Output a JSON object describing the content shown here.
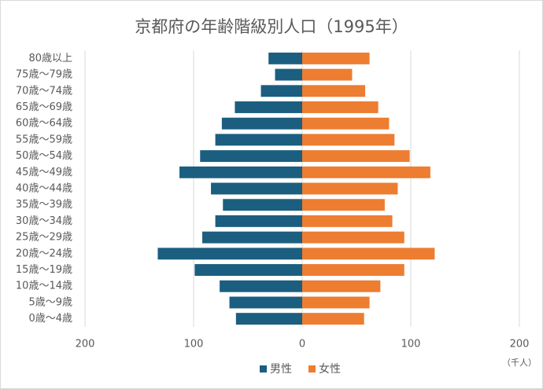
{
  "chart_data": {
    "type": "bar",
    "orientation": "horizontal",
    "title": "京都府の年齢階級別人口（1995年）",
    "unit_label": "（千人）",
    "categories": [
      "80歳以上",
      "75歳～79歳",
      "70歳～74歳",
      "65歳～69歳",
      "60歳～64歳",
      "55歳～59歳",
      "50歳～54歳",
      "45歳～49歳",
      "40歳～44歳",
      "35歳～39歳",
      "30歳～34歳",
      "25歳～29歳",
      "20歳～24歳",
      "15歳～19歳",
      "10歳～14歳",
      "5歳～9歳",
      "0歳～4歳"
    ],
    "series": [
      {
        "name": "男性",
        "color": "#1b5e80",
        "values": [
          -31,
          -25,
          -38,
          -62,
          -74,
          -80,
          -94,
          -113,
          -84,
          -73,
          -80,
          -92,
          -133,
          -99,
          -76,
          -67,
          -61
        ]
      },
      {
        "name": "女性",
        "color": "#ed7d31",
        "values": [
          62,
          46,
          58,
          70,
          80,
          85,
          99,
          118,
          88,
          76,
          83,
          94,
          122,
          94,
          72,
          62,
          57
        ]
      }
    ],
    "xlim": [
      -200,
      200
    ],
    "xticks": [
      {
        "value": -200,
        "label": "200"
      },
      {
        "value": -100,
        "label": "100"
      },
      0,
      100,
      200
    ],
    "grid": true,
    "legend": "bottom"
  }
}
